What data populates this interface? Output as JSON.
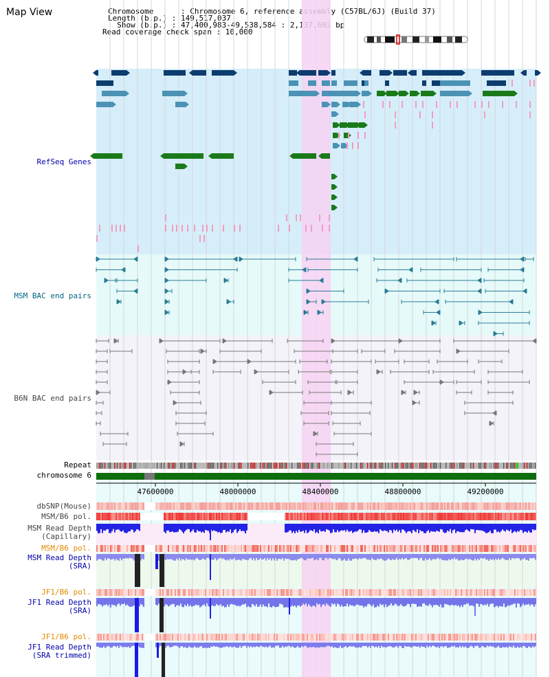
{
  "page_title": "Map View",
  "info": {
    "chromosome_line": "Chromosome      : Chromosome 6, reference assembly (C57BL/6J) (Build 37)",
    "length_line": "Length (b.p.) : 149,517,037",
    "show_line": "  Show (b.p.) : 47,400,983-49,538,584 : 2,137,602 bp",
    "coverage_line": "Read coverage check span : 10,000"
  },
  "tracks": {
    "refseq": "RefSeq Genes",
    "msm_bac": "MSM BAC end pairs",
    "b6n_bac": "B6N BAC end pairs",
    "repeat": "Repeat",
    "chrom": "chromosome 6",
    "dbsnp": "dbSNP(Mouse)",
    "msm_b6_pol_1": "MSM/B6 pol.",
    "msm_depth_cap": "MSM Read Depth\n(Capillary)",
    "msm_b6_pol_2": "MSM/B6 pol.",
    "msm_depth_sra": "MSM Read Depth\n(SRA)",
    "jf1_b6_pol_1": "JF1/B6 pol.",
    "jf1_depth_sra": "JF1 Read Depth\n(SRA)",
    "jf1_b6_pol_2": "JF1/B6 pol.",
    "jf1_depth_trim": "JF1 Read Depth\n(SRA trimmed)"
  },
  "axis": {
    "ticks": [
      "47600000",
      "48000000",
      "48400000",
      "48800000",
      "49200000"
    ]
  },
  "colors": {
    "refseq_bg": "#d6eefa",
    "bac_bg": "#e6fafa",
    "b6n_bg": "#f3f3f9",
    "highlight": "#f7d2f3",
    "gene_dark": "#0d3c6e",
    "gene_mid": "#4b92b5",
    "gene_green": "#1a7a1a",
    "gene_pink": "#f39cc0",
    "msm_bac": "#2a7c94",
    "b6n_bac": "#777777",
    "chrom_green": "#0e6e0e",
    "depth_blue": "#2020e0",
    "depth_light": "#8888ee",
    "label_blue": "#0000aa",
    "label_cyan": "#006680",
    "label_orange": "#e08a00",
    "label_gray": "#444444"
  }
}
